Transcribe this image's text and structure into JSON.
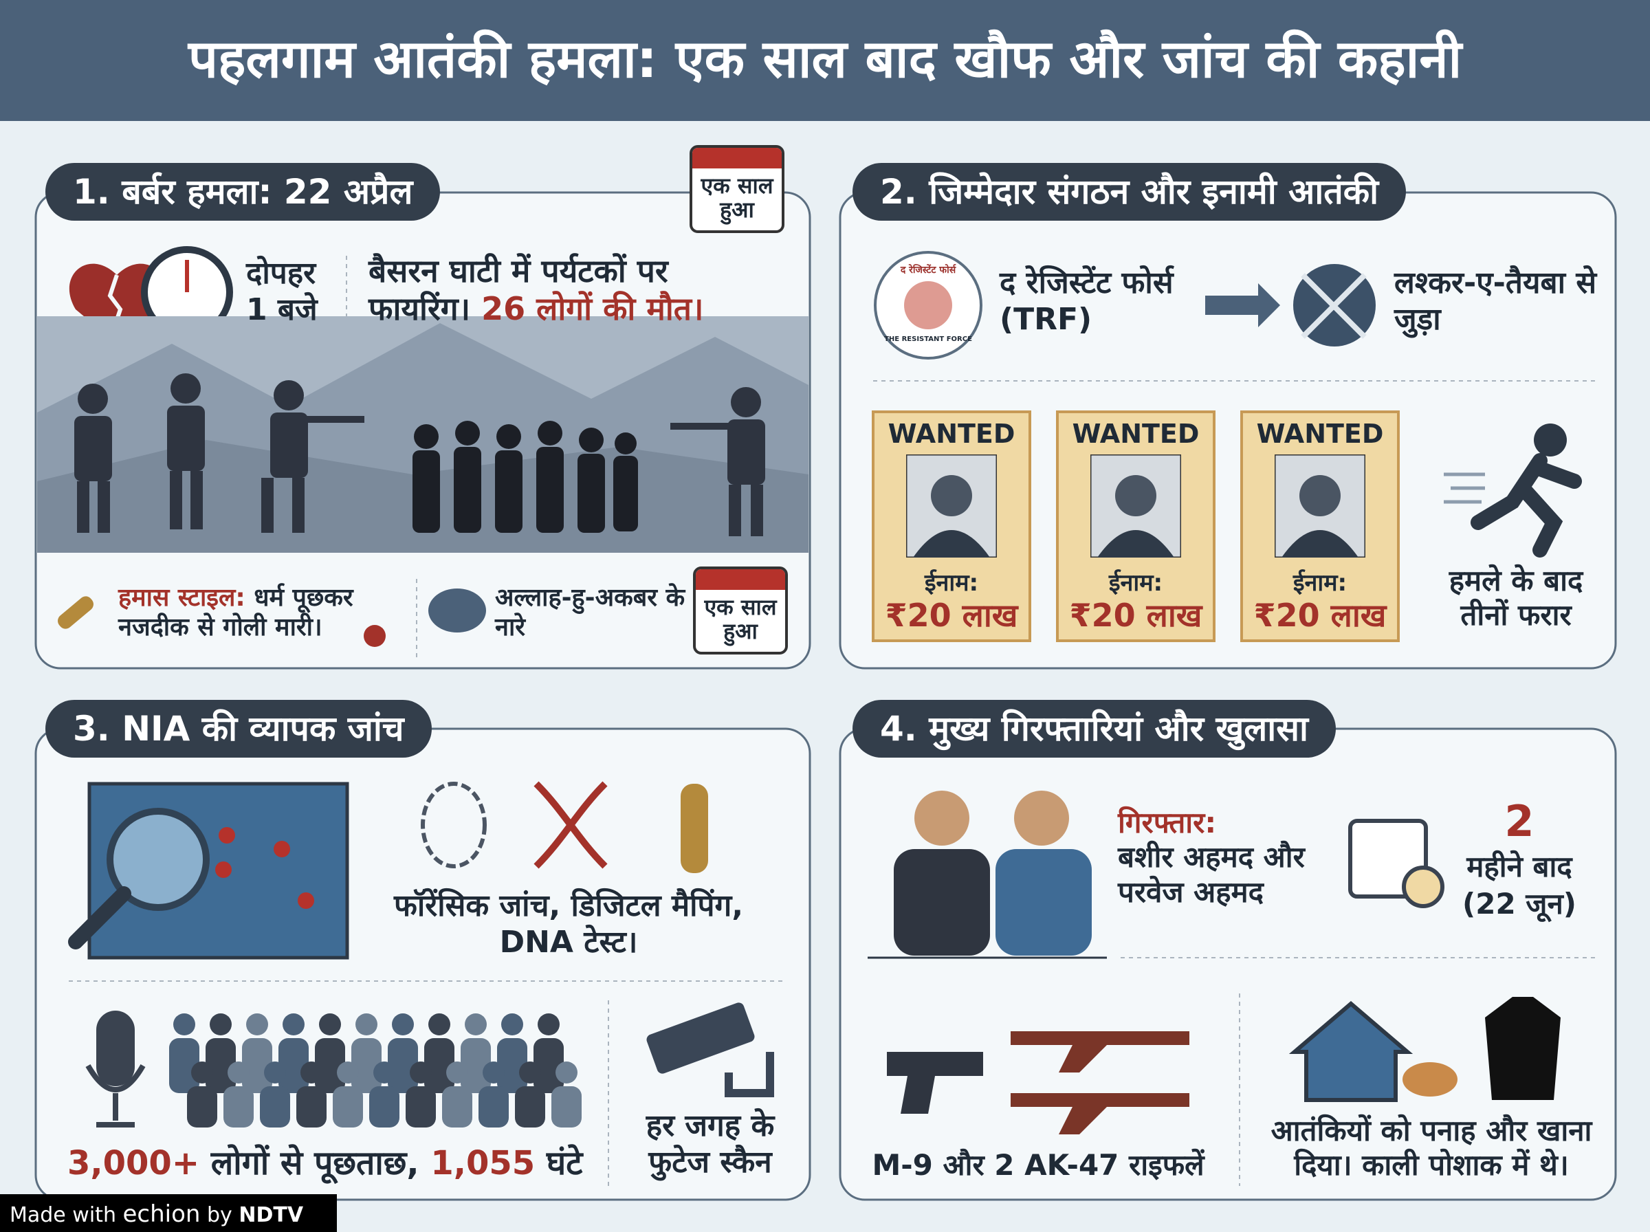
{
  "header": {
    "title": "पहलगाम आतंकी हमला: एक साल बाद खौफ और जांच की कहानी"
  },
  "sections": [
    {
      "heading": "1. बर्बर हमला: 22 अप्रैल",
      "calendar_badge": "एक साल हुआ",
      "time_label": "दोपहर 1 बजे",
      "description": "बैसरन घाटी में पर्यटकों पर फायरिंग।",
      "deaths": "26 लोगों की मौत।",
      "style_label": "हमास स्टाइल:",
      "style_text": "धर्म पूछकर नजदीक से गोली मारी।",
      "slogan": "अल्लाह-हु-अकबर के नारे",
      "calendar_badge_2": "एक साल हुआ"
    },
    {
      "heading": "2. जिम्मेदार संगठन और इनामी आतंकी",
      "logo_text": "द रेजिस्टेंट फोर्स",
      "logo_subtext": "THE RESISTANT FORCE",
      "org": "द रेजिस्टेंट फोर्स (TRF)",
      "linked": "लश्कर-ए-तैयबा से जुड़ा",
      "wanted": [
        {
          "label": "WANTED",
          "reward_label": "ईनाम:",
          "reward": "₹20 लाख"
        },
        {
          "label": "WANTED",
          "reward_label": "ईनाम:",
          "reward": "₹20 लाख"
        },
        {
          "label": "WANTED",
          "reward_label": "ईनाम:",
          "reward": "₹20 लाख"
        }
      ],
      "fugitive": "हमले के बाद तीनों फरार"
    },
    {
      "heading": "3. NIA की व्यापक जांच",
      "forensics": "फॉरेंसिक जांच, डिजिटल मैपिंग, DNA टेस्ट।",
      "interrogations_count": "3,000+",
      "interrogations_text": "लोगों से पूछताछ,",
      "hours": "1,055",
      "hours_text": "घंटे",
      "footage": "हर जगह के फुटेज स्कैन"
    },
    {
      "heading": "4. मुख्य गिरफ्तारियां और खुलासा",
      "arrested_label": "गिरफ्तार:",
      "arrested": "बशीर अहमद और परवेज अहमद",
      "months": "2",
      "months_text": "महीने बाद",
      "date": "(22 जून)",
      "weapons": "M-9 और 2 AK-47 राइफलें",
      "shelter": "आतंकियों को पनाह और खाना दिया। काली पोशाक में थे।"
    }
  ],
  "footer": {
    "made_with": "Made with",
    "brand": "echion",
    "by": "by",
    "partner": "NDTV"
  }
}
